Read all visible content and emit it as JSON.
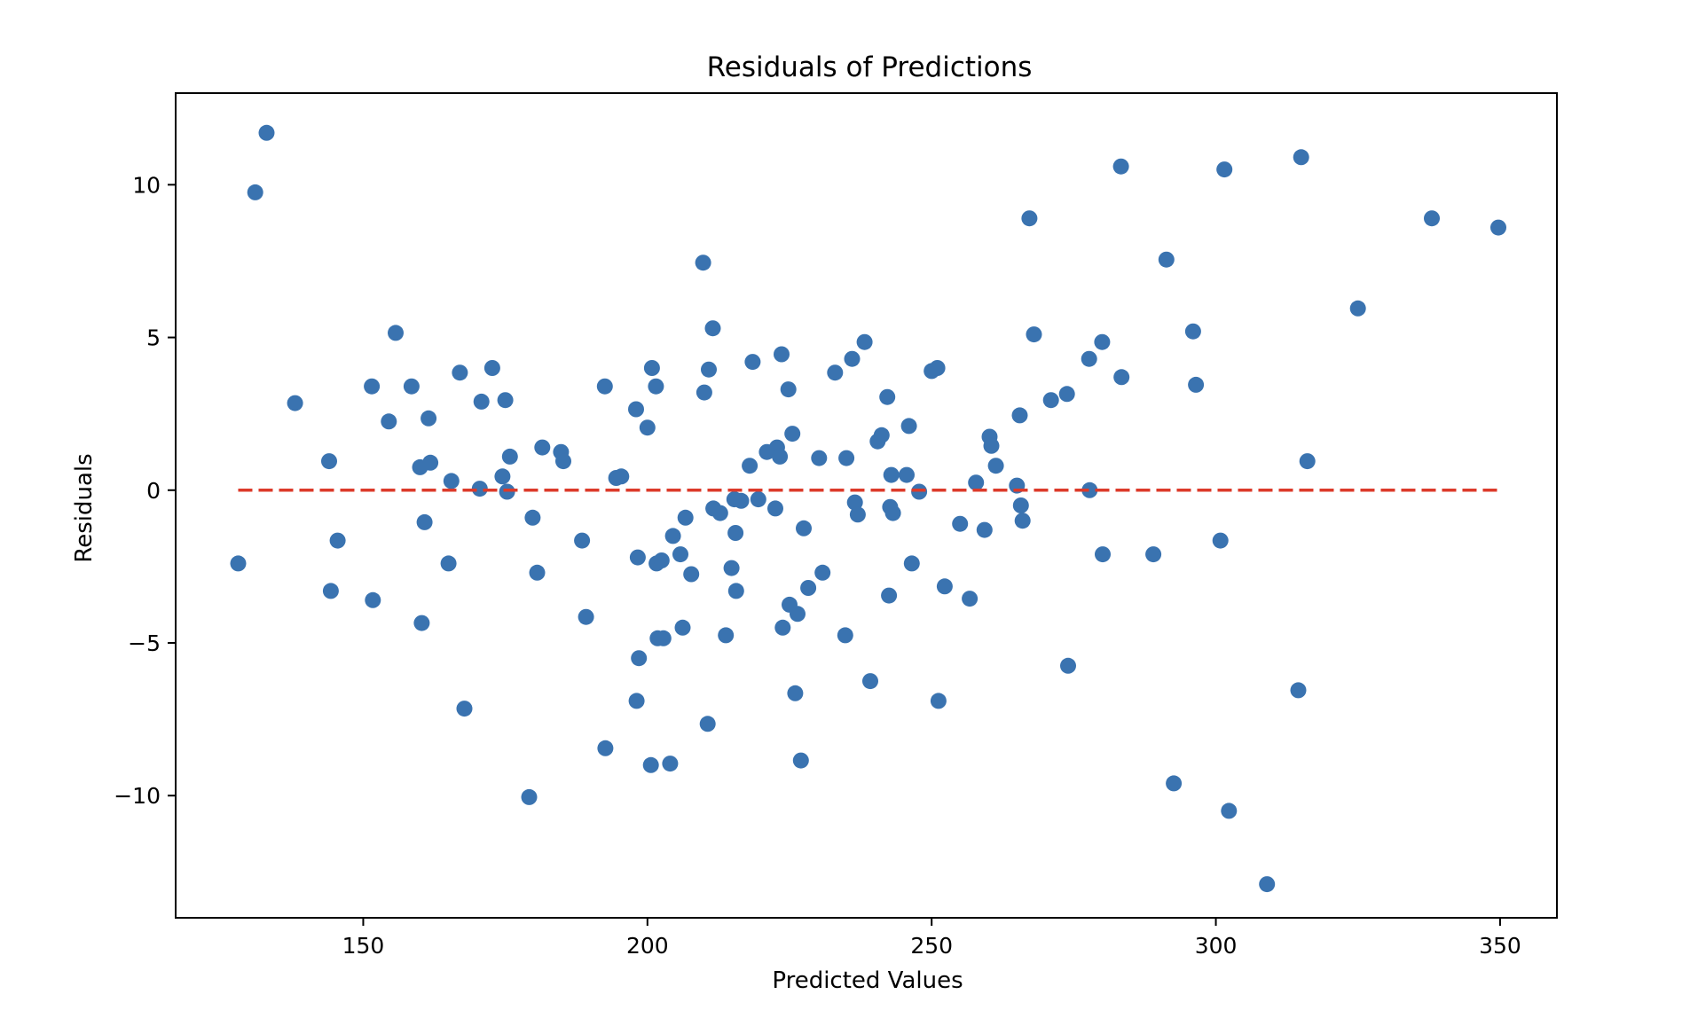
{
  "chart_data": {
    "type": "scatter",
    "title": "Residuals of Predictions",
    "xlabel": "Predicted Values",
    "ylabel": "Residuals",
    "xlim": [
      117,
      360
    ],
    "ylim": [
      -14,
      13
    ],
    "xticks": [
      150,
      200,
      250,
      300,
      350
    ],
    "xtick_labels": [
      "150",
      "200",
      "250",
      "300",
      "350"
    ],
    "yticks": [
      10,
      5,
      0,
      -5,
      -10
    ],
    "ytick_labels": [
      "10",
      "5",
      "0",
      "−5",
      "−10"
    ],
    "grid": false,
    "colors": {
      "points": "#3a73b0",
      "reference_line": "#dc3a2a",
      "axes": "#000000"
    },
    "reference_line": {
      "y": 0,
      "x_start": 128,
      "x_end": 350,
      "style": "dashed"
    },
    "series": [
      {
        "points": [
          [
            128,
            -2.4
          ],
          [
            131,
            9.75
          ],
          [
            133,
            11.7
          ],
          [
            138,
            2.85
          ],
          [
            144,
            0.95
          ],
          [
            144.3,
            -3.3
          ],
          [
            145.5,
            -1.65
          ],
          [
            151.5,
            3.4
          ],
          [
            151.7,
            -3.6
          ],
          [
            154.5,
            2.25
          ],
          [
            155.7,
            5.15
          ],
          [
            158.5,
            3.4
          ],
          [
            160,
            0.75
          ],
          [
            160.3,
            -4.35
          ],
          [
            160.8,
            -1.05
          ],
          [
            161.5,
            2.35
          ],
          [
            161.8,
            0.9
          ],
          [
            165,
            -2.4
          ],
          [
            165.5,
            0.3
          ],
          [
            167,
            3.85
          ],
          [
            167.8,
            -7.15
          ],
          [
            170.5,
            0.05
          ],
          [
            170.8,
            2.9
          ],
          [
            172.7,
            4.0
          ],
          [
            174.5,
            0.45
          ],
          [
            175,
            2.95
          ],
          [
            175.3,
            -0.05
          ],
          [
            175.8,
            1.1
          ],
          [
            179.2,
            -10.05
          ],
          [
            179.8,
            -0.9
          ],
          [
            180.6,
            -2.7
          ],
          [
            181.5,
            1.4
          ],
          [
            184.8,
            1.25
          ],
          [
            185.2,
            0.95
          ],
          [
            188.5,
            -1.65
          ],
          [
            189.2,
            -4.15
          ],
          [
            192.5,
            3.4
          ],
          [
            192.6,
            -8.45
          ],
          [
            194.5,
            0.4
          ],
          [
            195.4,
            0.45
          ],
          [
            198,
            2.65
          ],
          [
            198.1,
            -6.9
          ],
          [
            198.3,
            -2.2
          ],
          [
            198.5,
            -5.5
          ],
          [
            200,
            2.05
          ],
          [
            200.6,
            -9.0
          ],
          [
            200.8,
            4.0
          ],
          [
            201.5,
            3.4
          ],
          [
            201.6,
            -2.4
          ],
          [
            201.8,
            -4.85
          ],
          [
            202.5,
            -2.3
          ],
          [
            202.8,
            -4.85
          ],
          [
            204,
            -8.95
          ],
          [
            204.5,
            -1.5
          ],
          [
            205.8,
            -2.1
          ],
          [
            206.2,
            -4.5
          ],
          [
            206.7,
            -0.9
          ],
          [
            207.7,
            -2.75
          ],
          [
            209.8,
            7.45
          ],
          [
            210,
            3.2
          ],
          [
            210.6,
            -7.65
          ],
          [
            210.8,
            3.95
          ],
          [
            211.5,
            5.3
          ],
          [
            211.6,
            -0.6
          ],
          [
            212.8,
            -0.75
          ],
          [
            213.8,
            -4.75
          ],
          [
            214.8,
            -2.55
          ],
          [
            215.3,
            -0.3
          ],
          [
            215.5,
            -1.4
          ],
          [
            215.6,
            -3.3
          ],
          [
            216.5,
            -0.35
          ],
          [
            218,
            0.8
          ],
          [
            218.5,
            4.2
          ],
          [
            219.5,
            -0.3
          ],
          [
            221,
            1.25
          ],
          [
            222.5,
            -0.6
          ],
          [
            222.8,
            1.4
          ],
          [
            223.3,
            1.1
          ],
          [
            223.6,
            4.45
          ],
          [
            223.8,
            -4.5
          ],
          [
            224.8,
            3.3
          ],
          [
            225,
            -3.75
          ],
          [
            225.5,
            1.85
          ],
          [
            226,
            -6.65
          ],
          [
            226.4,
            -4.05
          ],
          [
            227,
            -8.85
          ],
          [
            227.5,
            -1.25
          ],
          [
            228.3,
            -3.2
          ],
          [
            230.2,
            1.05
          ],
          [
            230.8,
            -2.7
          ],
          [
            233,
            3.85
          ],
          [
            234.8,
            -4.75
          ],
          [
            235,
            1.05
          ],
          [
            236,
            4.3
          ],
          [
            236.5,
            -0.4
          ],
          [
            237,
            -0.8
          ],
          [
            238.2,
            4.85
          ],
          [
            239.2,
            -6.25
          ],
          [
            240.5,
            1.6
          ],
          [
            241.2,
            1.8
          ],
          [
            242.2,
            3.05
          ],
          [
            242.5,
            -3.45
          ],
          [
            242.7,
            -0.55
          ],
          [
            242.9,
            0.5
          ],
          [
            243.2,
            -0.75
          ],
          [
            245.6,
            0.5
          ],
          [
            246,
            2.1
          ],
          [
            246.5,
            -2.4
          ],
          [
            247.8,
            -0.05
          ],
          [
            250,
            3.9
          ],
          [
            251,
            4.0
          ],
          [
            251.2,
            -6.9
          ],
          [
            252.3,
            -3.15
          ],
          [
            255,
            -1.1
          ],
          [
            256.7,
            -3.55
          ],
          [
            257.8,
            0.25
          ],
          [
            259.3,
            -1.3
          ],
          [
            260.2,
            1.75
          ],
          [
            260.5,
            1.45
          ],
          [
            261.3,
            0.8
          ],
          [
            265,
            0.15
          ],
          [
            265.5,
            2.45
          ],
          [
            265.7,
            -0.5
          ],
          [
            266,
            -1.0
          ],
          [
            267.2,
            8.9
          ],
          [
            268,
            5.1
          ],
          [
            271,
            2.95
          ],
          [
            273.8,
            3.15
          ],
          [
            274,
            -5.75
          ],
          [
            277.7,
            4.3
          ],
          [
            277.8,
            0.0
          ],
          [
            280,
            4.85
          ],
          [
            280.1,
            -2.1
          ],
          [
            283.3,
            10.6
          ],
          [
            283.4,
            3.7
          ],
          [
            289,
            -2.1
          ],
          [
            291.3,
            7.55
          ],
          [
            292.6,
            -9.6
          ],
          [
            296,
            5.2
          ],
          [
            296.5,
            3.45
          ],
          [
            300.8,
            -1.65
          ],
          [
            301.5,
            10.5
          ],
          [
            302.3,
            -10.5
          ],
          [
            309,
            -12.9
          ],
          [
            314.5,
            -6.55
          ],
          [
            315,
            10.9
          ],
          [
            316.1,
            0.95
          ],
          [
            325,
            5.95
          ],
          [
            338,
            8.9
          ],
          [
            349.7,
            8.6
          ]
        ]
      }
    ]
  }
}
